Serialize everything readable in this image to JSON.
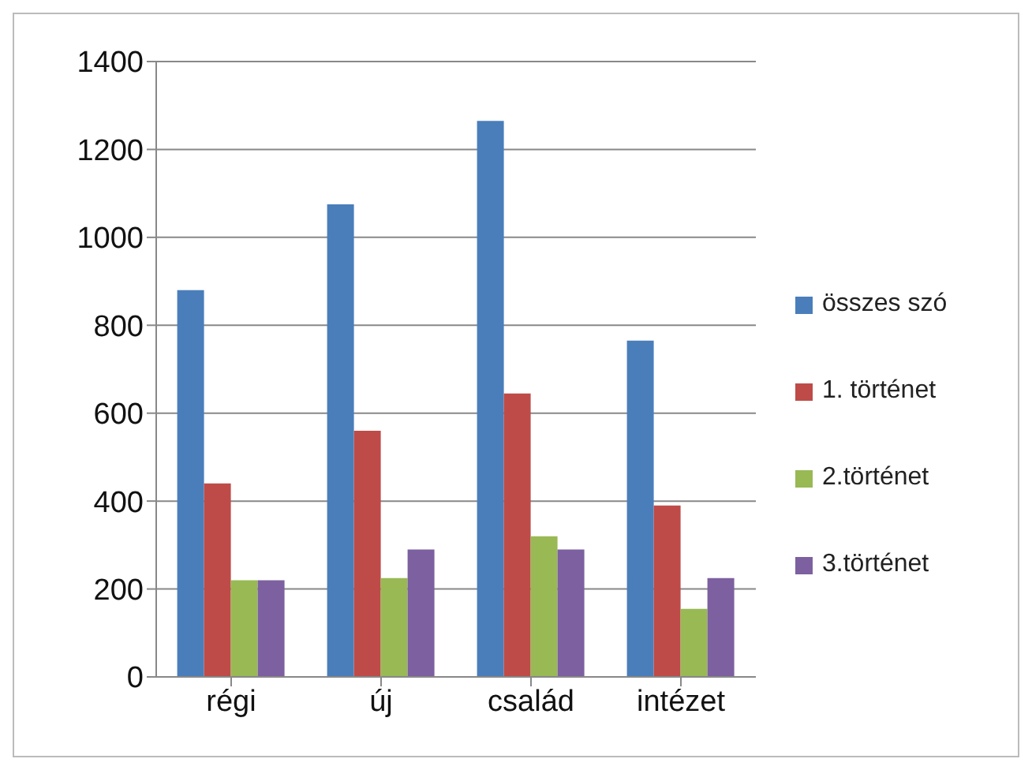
{
  "chart_data": {
    "type": "bar",
    "categories": [
      "régi",
      "új",
      "család",
      "intézet"
    ],
    "series": [
      {
        "name": "összes szó",
        "color": "#4a7ebb",
        "values": [
          880,
          1075,
          1265,
          765
        ]
      },
      {
        "name": "1. történet",
        "color": "#be4b48",
        "values": [
          440,
          560,
          645,
          390
        ]
      },
      {
        "name": "2.történet",
        "color": "#98b954",
        "values": [
          220,
          225,
          320,
          155
        ]
      },
      {
        "name": "3.történet",
        "color": "#7d60a0",
        "values": [
          220,
          290,
          290,
          225
        ]
      }
    ],
    "ylim": [
      0,
      1400
    ],
    "yticks": [
      0,
      200,
      400,
      600,
      800,
      1000,
      1200,
      1400
    ],
    "grid": "y",
    "legend": "right"
  }
}
